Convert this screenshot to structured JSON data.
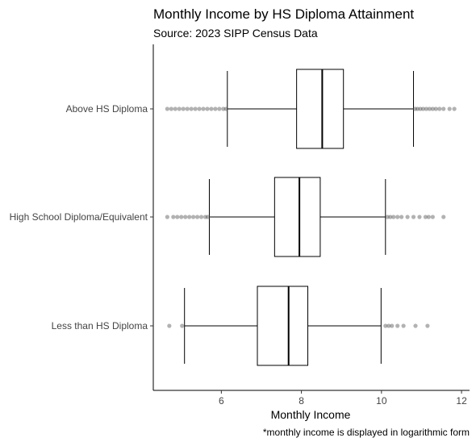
{
  "chart_data": {
    "type": "boxplot",
    "orientation": "horizontal",
    "title": "Monthly Income by HS Diploma Attainment",
    "subtitle": "Source: 2023 SIPP Census Data",
    "xlabel": "Monthly Income",
    "caption": "*monthly income is displayed in logarithmic form",
    "xlim": [
      4.3,
      12.2
    ],
    "x_ticks": [
      6,
      8,
      10,
      12
    ],
    "categories": [
      "Above HS Diploma",
      "High School Diploma/Equivalent",
      "Less than HS Diploma"
    ],
    "series": [
      {
        "category": "Above HS Diploma",
        "whisker_low": 6.15,
        "q1": 7.88,
        "median": 8.52,
        "q3": 9.05,
        "whisker_high": 10.8,
        "outliers": [
          4.65,
          4.75,
          4.85,
          4.95,
          5.05,
          5.15,
          5.25,
          5.35,
          5.45,
          5.55,
          5.65,
          5.75,
          5.85,
          5.95,
          6.05,
          6.12,
          10.84,
          10.9,
          10.97,
          11.04,
          11.12,
          11.2,
          11.28,
          11.36,
          11.45,
          11.55,
          11.7,
          11.82
        ]
      },
      {
        "category": "High School Diploma/Equivalent",
        "whisker_low": 5.7,
        "q1": 7.33,
        "median": 7.95,
        "q3": 8.47,
        "whisker_high": 10.1,
        "outliers": [
          4.65,
          4.8,
          4.9,
          5.0,
          5.1,
          5.2,
          5.3,
          5.4,
          5.5,
          5.6,
          5.66,
          10.15,
          10.22,
          10.3,
          10.4,
          10.5,
          10.65,
          10.8,
          10.95,
          11.1,
          11.18,
          11.28,
          11.55
        ]
      },
      {
        "category": "Less than HS Diploma",
        "whisker_low": 5.08,
        "q1": 6.9,
        "median": 7.68,
        "q3": 8.16,
        "whisker_high": 9.99,
        "outliers": [
          4.7,
          5.02,
          10.1,
          10.18,
          10.26,
          10.4,
          10.55,
          10.85,
          11.15
        ]
      }
    ]
  }
}
